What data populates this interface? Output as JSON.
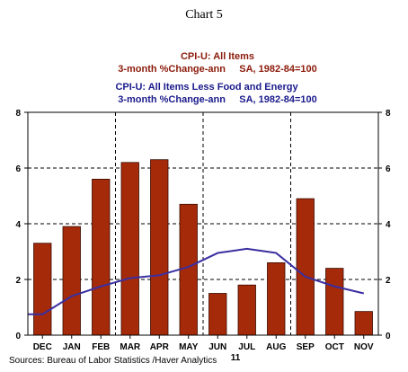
{
  "header": {
    "title": "Chart 5"
  },
  "legend": {
    "series1_line1": "CPI-U: All Items",
    "series1_line2": "3-month %Change-ann     SA, 1982-84=100",
    "series2_line1": "CPI-U: All Items Less Food and Energy",
    "series2_line2": "3-month %Change-ann     SA, 1982-84=100"
  },
  "footer": {
    "source": "Sources:  Bureau of Labor Statistics /Haver Analytics",
    "year_label": "11"
  },
  "colors": {
    "bar": "#a52a0a",
    "bar_edge": "#3a0a00",
    "line": "#3a2fa0",
    "series1_text": "#8b1a0a",
    "series2_text": "#1a1a8c",
    "grid": "#000000"
  },
  "chart_data": {
    "type": "bar",
    "title": "Chart 5",
    "categories": [
      "DEC",
      "JAN",
      "FEB",
      "MAR",
      "APR",
      "MAY",
      "JUN",
      "JUL",
      "AUG",
      "SEP",
      "OCT",
      "NOV"
    ],
    "series": [
      {
        "name": "CPI-U: All Items",
        "type": "bar",
        "values": [
          3.3,
          3.9,
          5.6,
          6.2,
          6.3,
          4.7,
          1.5,
          1.8,
          2.6,
          4.9,
          2.4,
          0.85
        ]
      },
      {
        "name": "CPI-U: All Items Less Food and Energy",
        "type": "line",
        "values": [
          0.75,
          1.4,
          1.75,
          2.05,
          2.15,
          2.45,
          2.95,
          3.1,
          2.95,
          2.1,
          1.75,
          1.5
        ],
        "start_value": 0.75
      }
    ],
    "ylim": [
      0,
      8
    ],
    "yticks": [
      0,
      2,
      4,
      6,
      8
    ],
    "grid": true,
    "secondary_y_axis": true,
    "xlabel": "",
    "ylabel": ""
  }
}
